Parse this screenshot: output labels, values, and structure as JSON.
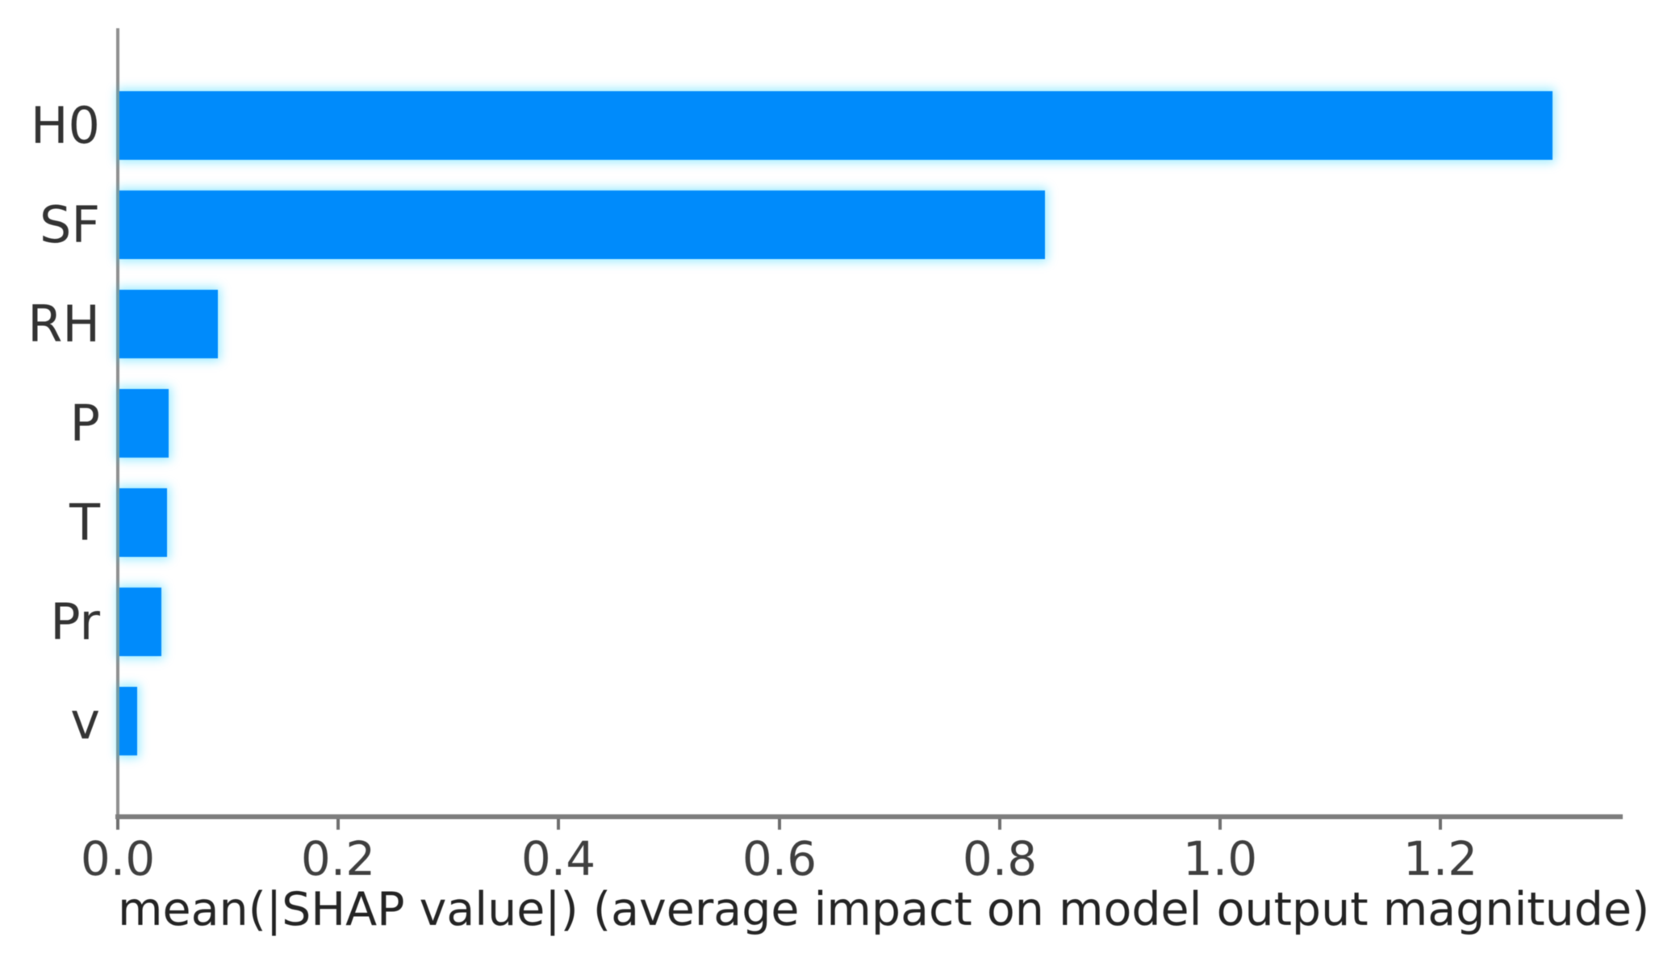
{
  "chart_data": {
    "type": "bar",
    "orientation": "horizontal",
    "title": "",
    "categories": [
      "H0",
      "SF",
      "RH",
      "P",
      "T",
      "Pr",
      "v"
    ],
    "values": [
      1.3,
      0.84,
      0.089,
      0.045,
      0.043,
      0.038,
      0.016
    ],
    "xlabel": "mean(|SHAP value|) (average impact on model output magnitude)",
    "ylabel": "",
    "xticks": [
      0.0,
      0.2,
      0.4,
      0.6,
      0.8,
      1.0,
      1.2
    ],
    "xtick_labels": [
      "0.0",
      "0.2",
      "0.4",
      "0.6",
      "0.8",
      "1.0",
      "1.2"
    ],
    "xlim": [
      0,
      1.364
    ],
    "grid": false,
    "legend": null,
    "bar_color": "#008bfb",
    "axis_color": "#7d7d7d",
    "text_color": "#333333"
  }
}
